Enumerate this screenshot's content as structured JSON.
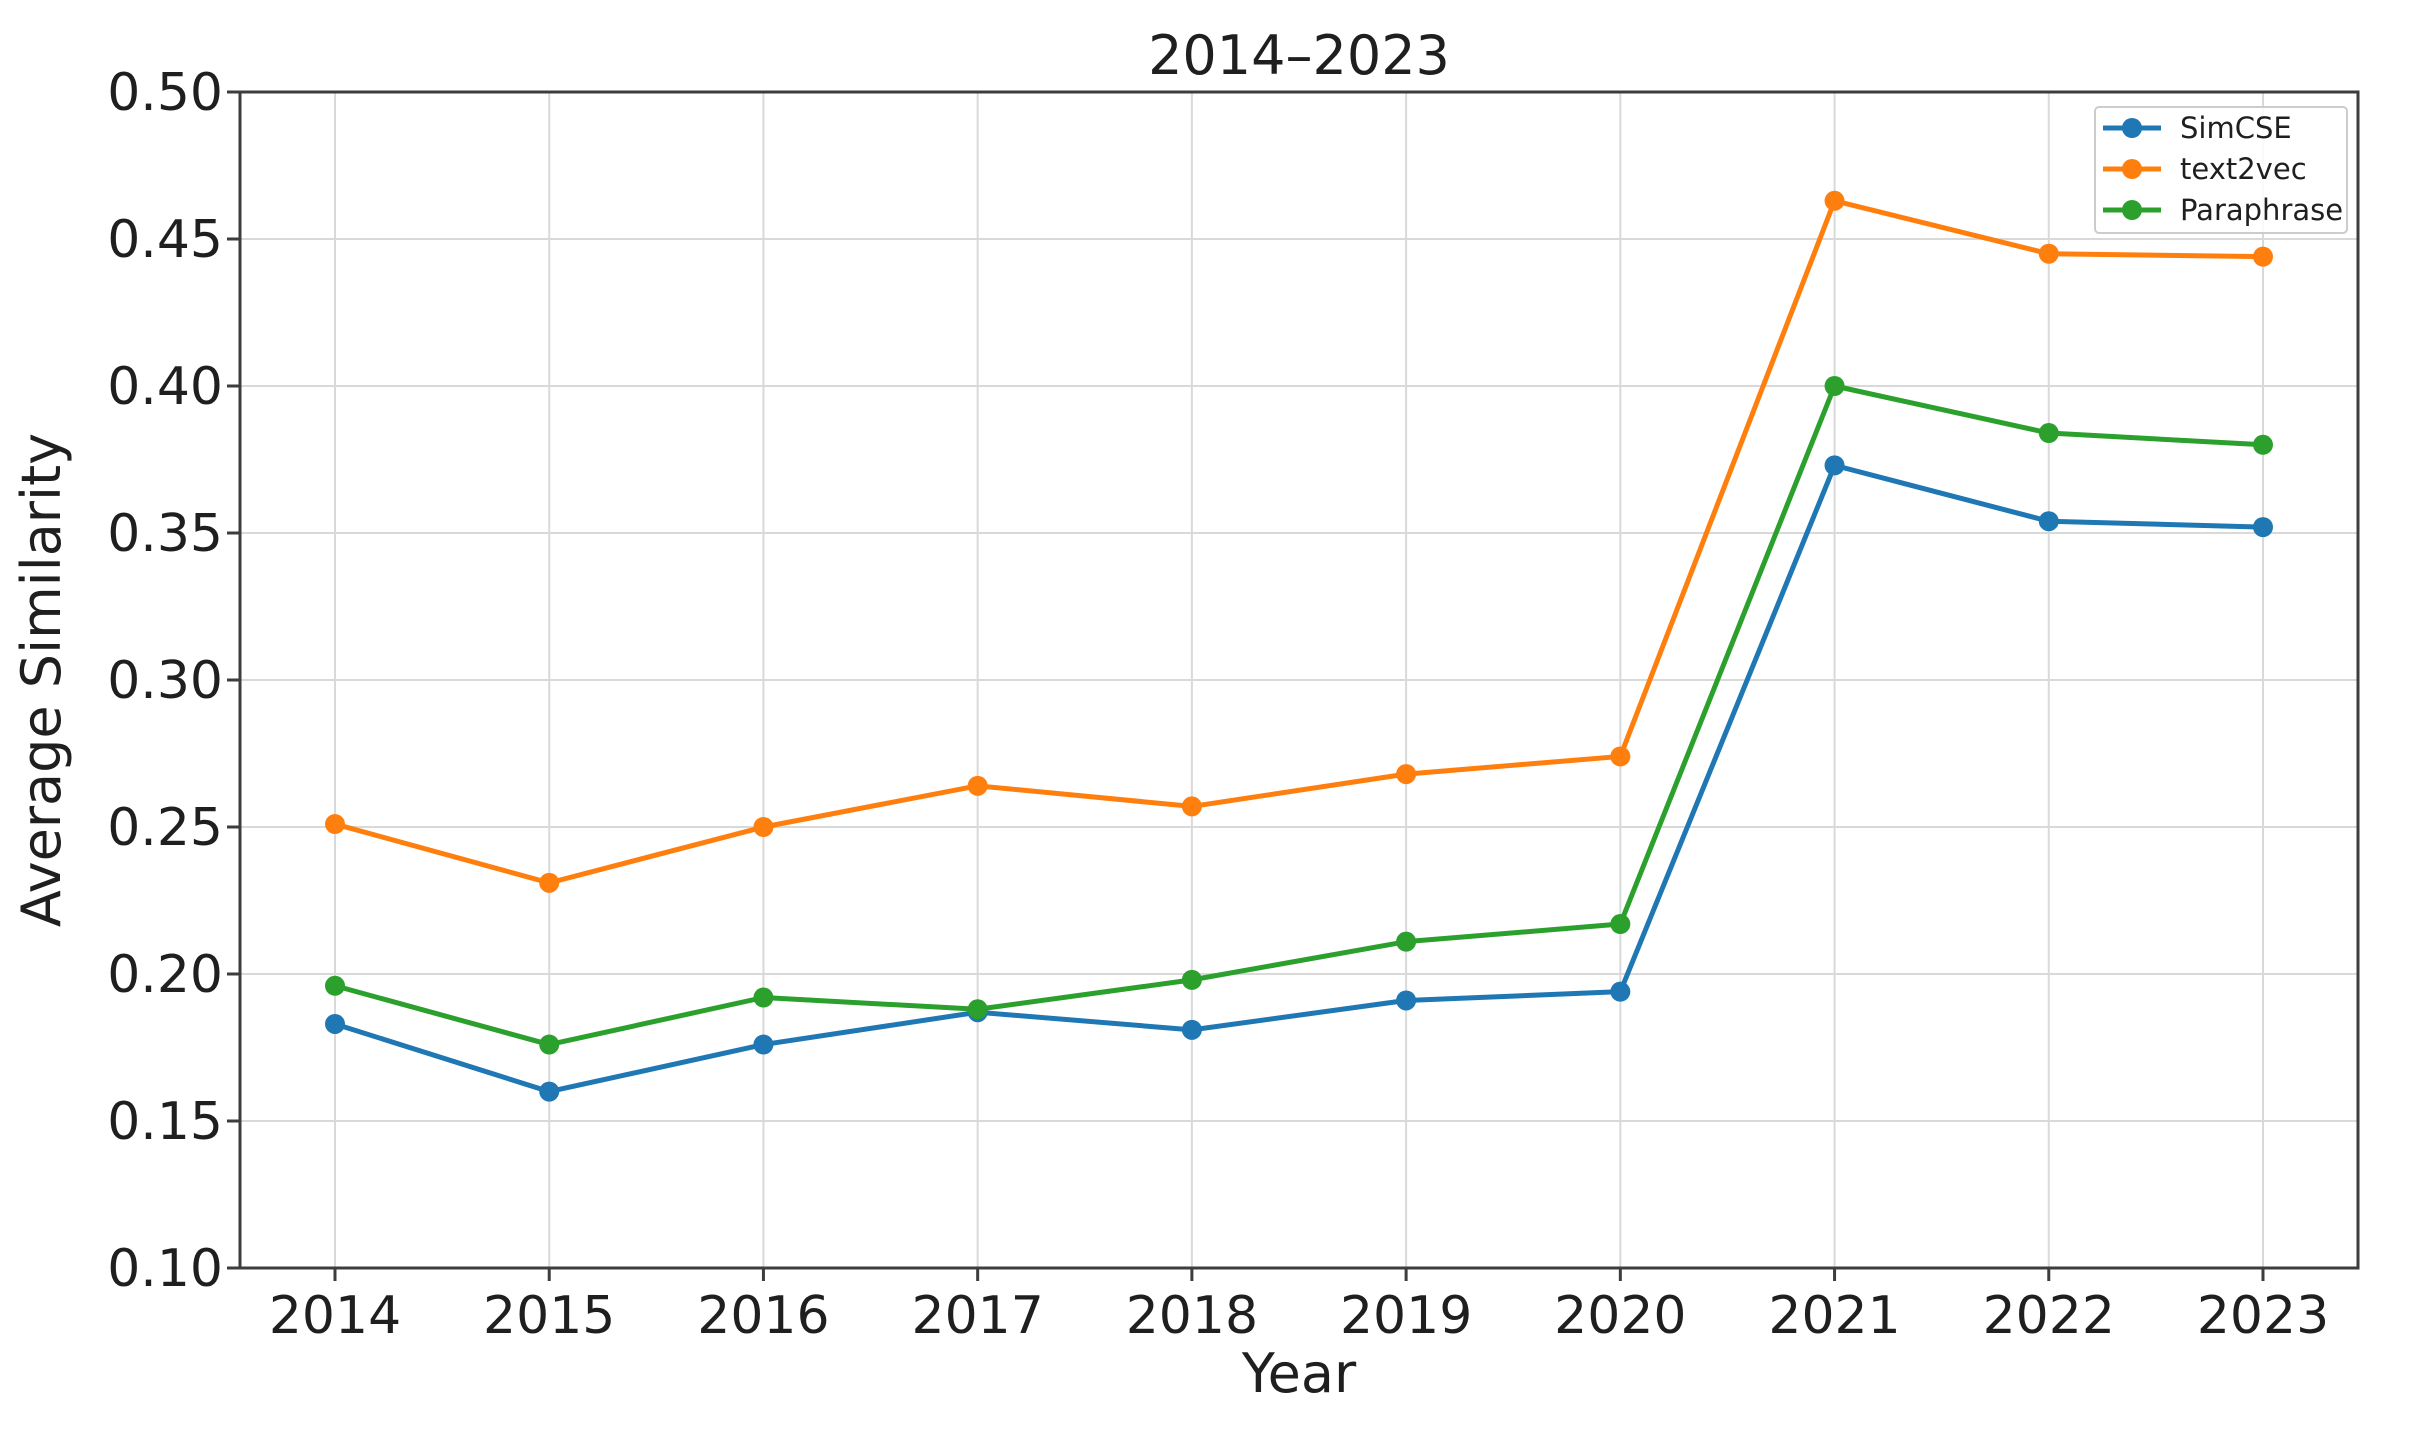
{
  "chart_data": {
    "type": "line",
    "title": "2014–2023",
    "xlabel": "Year",
    "ylabel": "Average Similarity",
    "x": [
      2014,
      2015,
      2016,
      2017,
      2018,
      2019,
      2020,
      2021,
      2022,
      2023
    ],
    "xtick_labels": [
      "2014",
      "2015",
      "2016",
      "2017",
      "2018",
      "2019",
      "2020",
      "2021",
      "2022",
      "2023"
    ],
    "series": [
      {
        "name": "SimCSE",
        "color": "#1f77b4",
        "marker": "circle",
        "values": [
          0.183,
          0.16,
          0.176,
          0.187,
          0.181,
          0.191,
          0.194,
          0.373,
          0.354,
          0.352
        ]
      },
      {
        "name": "text2vec",
        "color": "#ff7f0e",
        "marker": "circle",
        "values": [
          0.251,
          0.231,
          0.25,
          0.264,
          0.257,
          0.268,
          0.274,
          0.463,
          0.445,
          0.444
        ]
      },
      {
        "name": "Paraphrase",
        "color": "#2ca02c",
        "marker": "circle",
        "values": [
          0.196,
          0.176,
          0.192,
          0.188,
          0.198,
          0.211,
          0.217,
          0.4,
          0.384,
          0.38
        ]
      }
    ],
    "ylim": [
      0.1,
      0.5
    ],
    "yticks": [
      0.1,
      0.15,
      0.2,
      0.25,
      0.3,
      0.35,
      0.4,
      0.45,
      0.5
    ],
    "ytick_labels": [
      "0.10",
      "0.15",
      "0.20",
      "0.25",
      "0.30",
      "0.35",
      "0.40",
      "0.45",
      "0.50"
    ],
    "grid": true,
    "legend_position": "top-right",
    "colors": {
      "axis": "#3d3d3d",
      "grid": "#d9d9d9",
      "text": "#1f1f1f",
      "legend_border": "#cccccc",
      "legend_bg": "rgba(255,255,255,0.85)",
      "background": "#ffffff"
    }
  }
}
